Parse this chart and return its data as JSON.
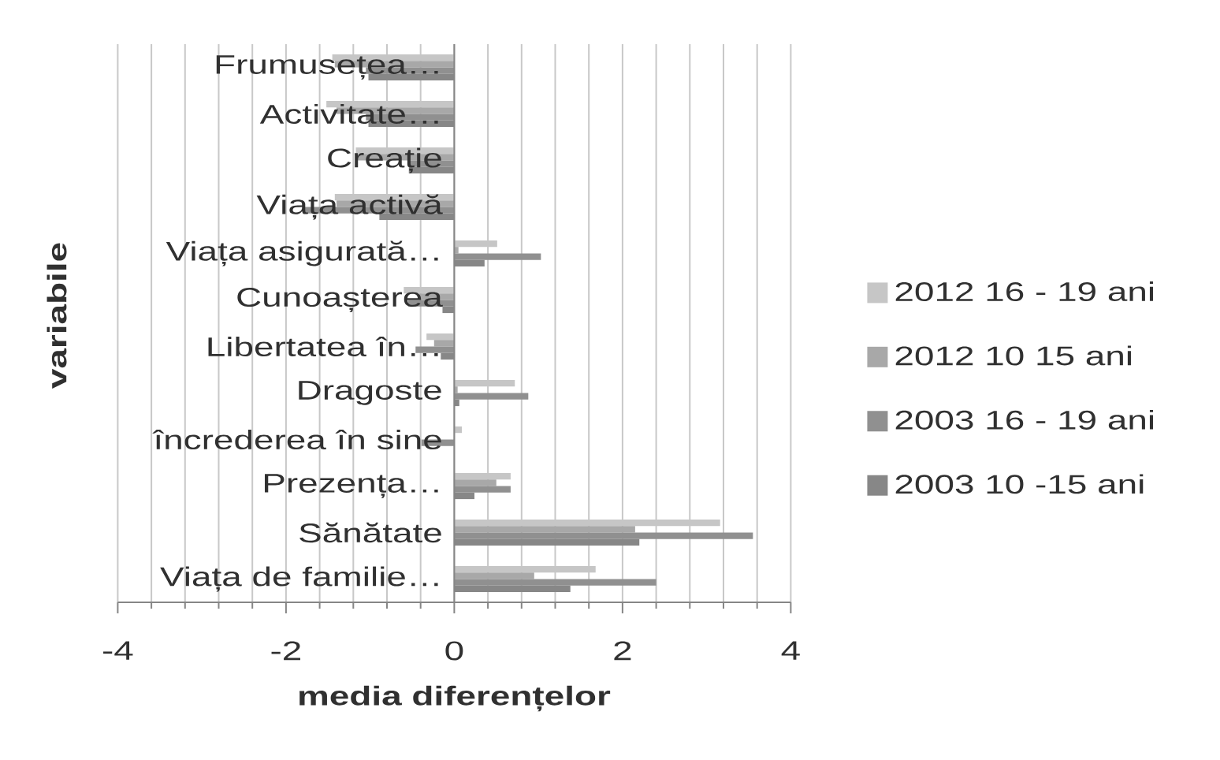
{
  "chart_data": {
    "type": "bar",
    "orientation": "horizontal",
    "xlabel": "media diferențelor",
    "ylabel": "variabile",
    "categories": [
      "Frumusețea…",
      "Activitate…",
      "Creație",
      "Viața activă",
      "Viața asigurată…",
      "Cunoașterea",
      "Libertatea în…",
      "Dragoste",
      "încrederea în sine",
      "Prezența…",
      "Sănătate",
      "Viața de familie…"
    ],
    "series": [
      {
        "name": "2012 16 - 19 ani",
        "color": "#c6c6c6",
        "values": [
          -1.45,
          -1.52,
          -1.17,
          -1.42,
          0.51,
          -0.6,
          -0.33,
          0.72,
          0.09,
          0.67,
          3.16,
          1.68
        ]
      },
      {
        "name": "2012 10 15 ani",
        "color": "#a8a8a8",
        "values": [
          -1.42,
          -1.4,
          -1.15,
          -1.4,
          0.05,
          -0.42,
          -0.24,
          0.04,
          0,
          0.5,
          2.15,
          0.95
        ]
      },
      {
        "name": "2003 16 - 19 ani",
        "color": "#909090",
        "values": [
          -1.05,
          -1.05,
          -0.55,
          -1.8,
          1.03,
          -0.55,
          -0.46,
          0.88,
          -0.39,
          0.67,
          3.55,
          2.4
        ]
      },
      {
        "name": "2003 10 -15 ani",
        "color": "#878787",
        "values": [
          -1.02,
          -1.02,
          -0.54,
          -0.89,
          0.36,
          -0.14,
          -0.16,
          0.06,
          0,
          0.24,
          2.2,
          1.38
        ]
      }
    ],
    "xlim": [
      -4,
      4
    ],
    "xticks": [
      -4,
      {
        "value": -3.6,
        "label": null
      },
      {
        "value": -3.2,
        "label": null
      },
      {
        "value": -2.8,
        "label": null
      },
      {
        "value": -2.4,
        "label": null
      },
      -2,
      {
        "value": -1.6,
        "label": null
      },
      {
        "value": -1.2,
        "label": null
      },
      {
        "value": -0.8,
        "label": null
      },
      {
        "value": -0.4,
        "label": null
      },
      0,
      {
        "value": 0.4,
        "label": null
      },
      {
        "value": 0.8,
        "label": null
      },
      {
        "value": 1.2,
        "label": null
      },
      {
        "value": 1.6,
        "label": null
      },
      2,
      {
        "value": 2.4,
        "label": null
      },
      {
        "value": 2.8,
        "label": null
      },
      {
        "value": 3.2,
        "label": null
      },
      {
        "value": 3.6,
        "label": null
      },
      4
    ],
    "grid": "x",
    "legend": "right"
  }
}
